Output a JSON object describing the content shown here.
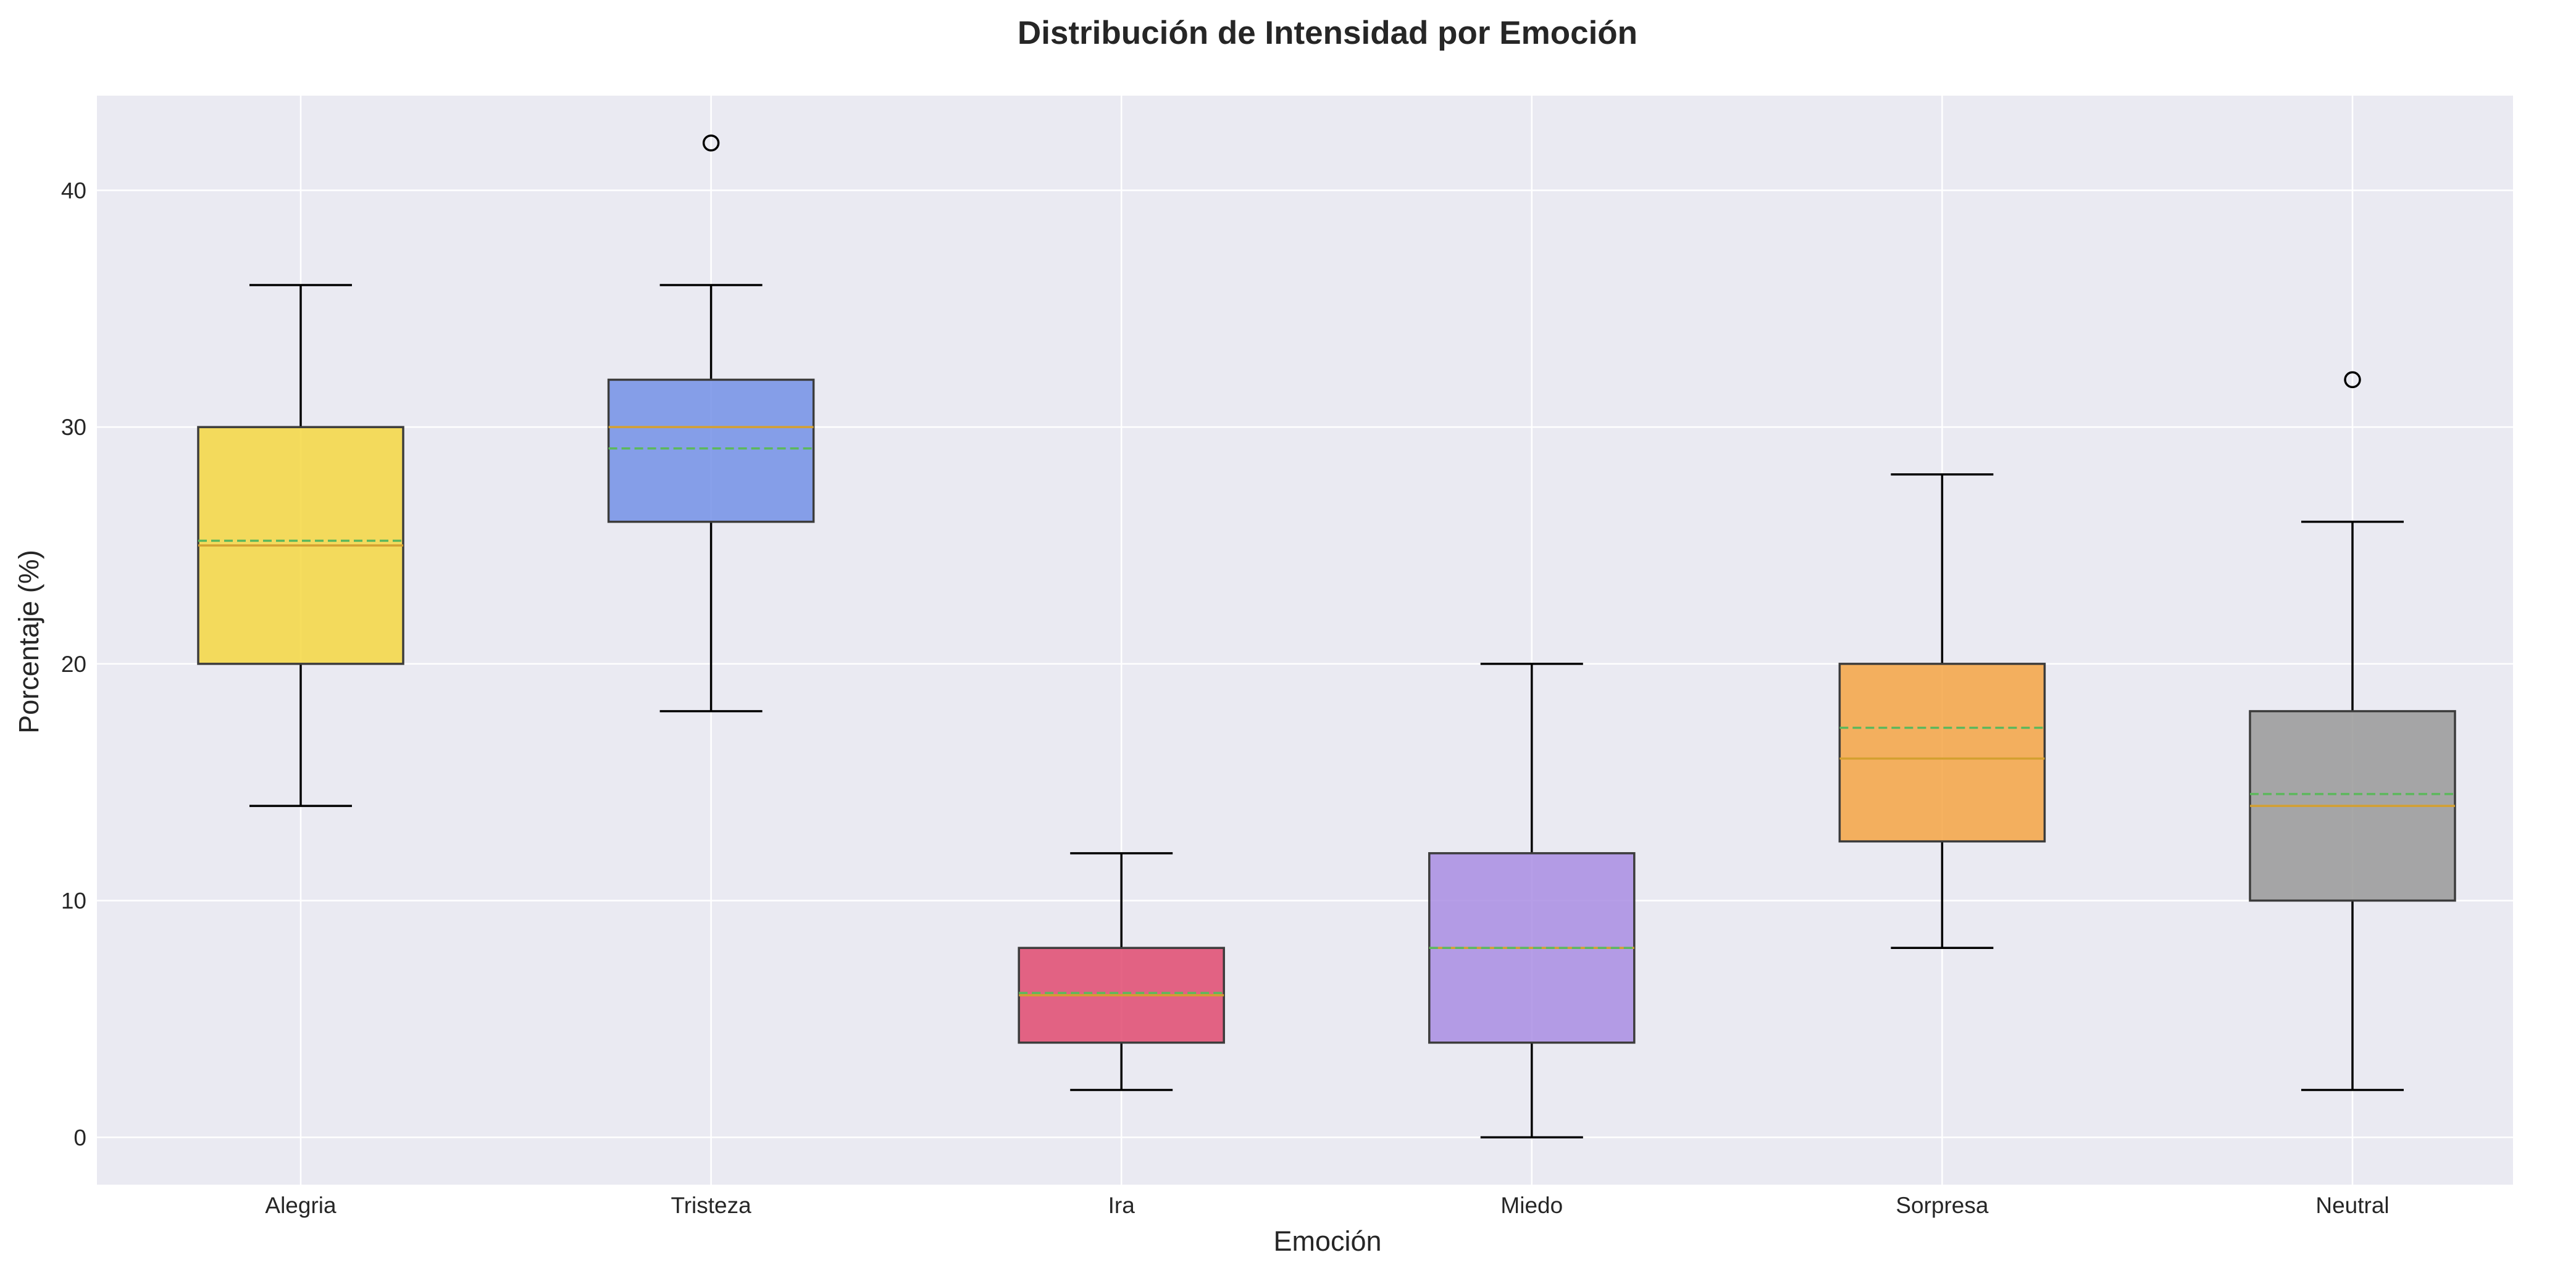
{
  "chart_data": {
    "type": "box",
    "title": "Distribución de Intensidad por Emoción",
    "xlabel": "Emoción",
    "ylabel": "Porcentaje (%)",
    "ylim": [
      -2,
      44
    ],
    "yticks": [
      0,
      10,
      20,
      30,
      40
    ],
    "grid": true,
    "legend": "none",
    "colors": {
      "background": "#EAEAF2",
      "grid": "#FFFFFF",
      "median_line": "#D4A030",
      "mean_line": "#5CB85C",
      "whisker": "#000000",
      "box_edge": "#3C3C3C"
    },
    "categories": [
      "Alegria",
      "Tristeza",
      "Ira",
      "Miedo",
      "Sorpresa",
      "Neutral"
    ],
    "boxes": [
      {
        "label": "Alegria",
        "min": 14,
        "q1": 20,
        "median": 25,
        "mean": 25.2,
        "q3": 30,
        "max": 36,
        "outliers": [],
        "color": "#F5D742"
      },
      {
        "label": "Tristeza",
        "min": 18,
        "q1": 26,
        "median": 30,
        "mean": 29.1,
        "q3": 32,
        "max": 36,
        "outliers": [
          42
        ],
        "color": "#7390E6"
      },
      {
        "label": "Ira",
        "min": 2,
        "q1": 4,
        "median": 6,
        "mean": 6.1,
        "q3": 8,
        "max": 12,
        "outliers": [],
        "color": "#E04A70"
      },
      {
        "label": "Miedo",
        "min": 0,
        "q1": 4,
        "median": 8,
        "mean": 8.0,
        "q3": 12,
        "max": 20,
        "outliers": [],
        "color": "#A98DE3"
      },
      {
        "label": "Sorpresa",
        "min": 8,
        "q1": 12.5,
        "median": 16,
        "mean": 17.3,
        "q3": 20,
        "max": 28,
        "outliers": [],
        "color": "#F5A444"
      },
      {
        "label": "Neutral",
        "min": 2,
        "q1": 10,
        "median": 14,
        "mean": 14.5,
        "q3": 18,
        "max": 26,
        "outliers": [
          32
        ],
        "color": "#999999"
      }
    ]
  }
}
